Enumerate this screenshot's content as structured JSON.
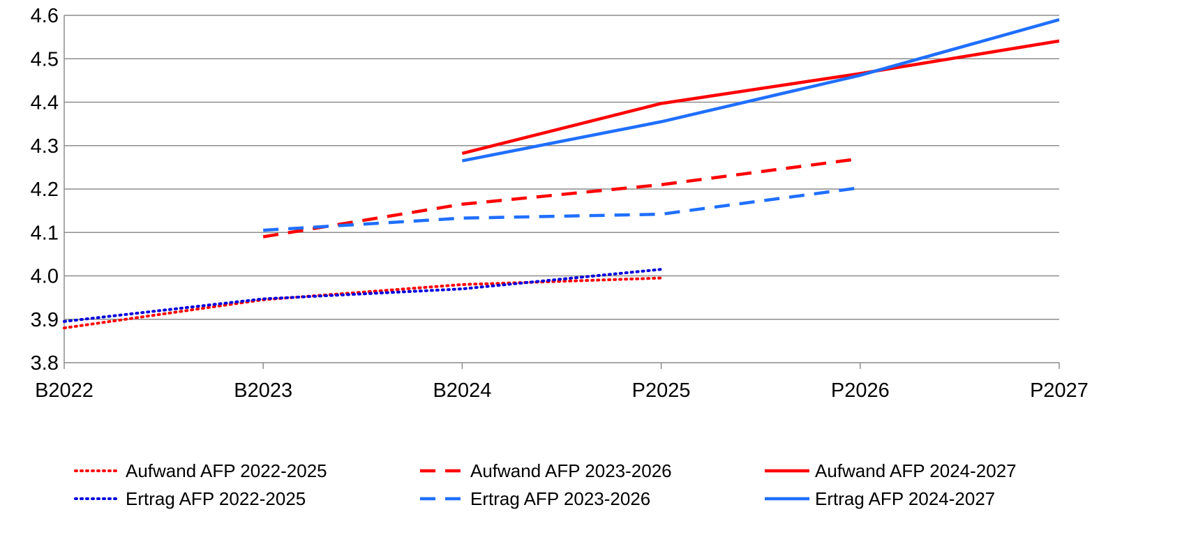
{
  "chart_data": {
    "type": "line",
    "title": "",
    "xlabel": "",
    "ylabel": "",
    "categories": [
      "B2022",
      "B2023",
      "B2024",
      "P2025",
      "P2026",
      "P2027"
    ],
    "y_ticks": [
      "3.8",
      "3.9",
      "4.0",
      "4.1",
      "4.2",
      "4.3",
      "4.4",
      "4.5",
      "4.6"
    ],
    "ylim": [
      3.8,
      4.6
    ],
    "grid": true,
    "legend_position": "bottom",
    "series": [
      {
        "name": "Aufwand AFP 2022-2025",
        "color": "#ff0000",
        "style": "dotted",
        "values": [
          3.88,
          3.945,
          3.98,
          3.995,
          null,
          null
        ]
      },
      {
        "name": "Aufwand AFP 2023-2026",
        "color": "#ff0000",
        "style": "dashed",
        "values": [
          null,
          4.09,
          4.165,
          4.21,
          4.27,
          null
        ]
      },
      {
        "name": "Aufwand AFP 2024-2027",
        "color": "#ff0000",
        "style": "solid",
        "values": [
          null,
          null,
          4.282,
          4.397,
          4.466,
          4.541
        ]
      },
      {
        "name": "Ertrag AFP 2022-2025",
        "color": "#0000dd",
        "style": "dotted",
        "values": [
          3.895,
          3.947,
          3.97,
          4.015,
          null,
          null
        ]
      },
      {
        "name": "Ertrag AFP 2023-2026",
        "color": "#1f6fff",
        "style": "dashed",
        "values": [
          null,
          4.105,
          4.133,
          4.142,
          4.203,
          null
        ]
      },
      {
        "name": "Ertrag AFP 2024-2027",
        "color": "#1f6fff",
        "style": "solid",
        "values": [
          null,
          null,
          4.265,
          4.355,
          4.462,
          4.59
        ]
      }
    ]
  }
}
